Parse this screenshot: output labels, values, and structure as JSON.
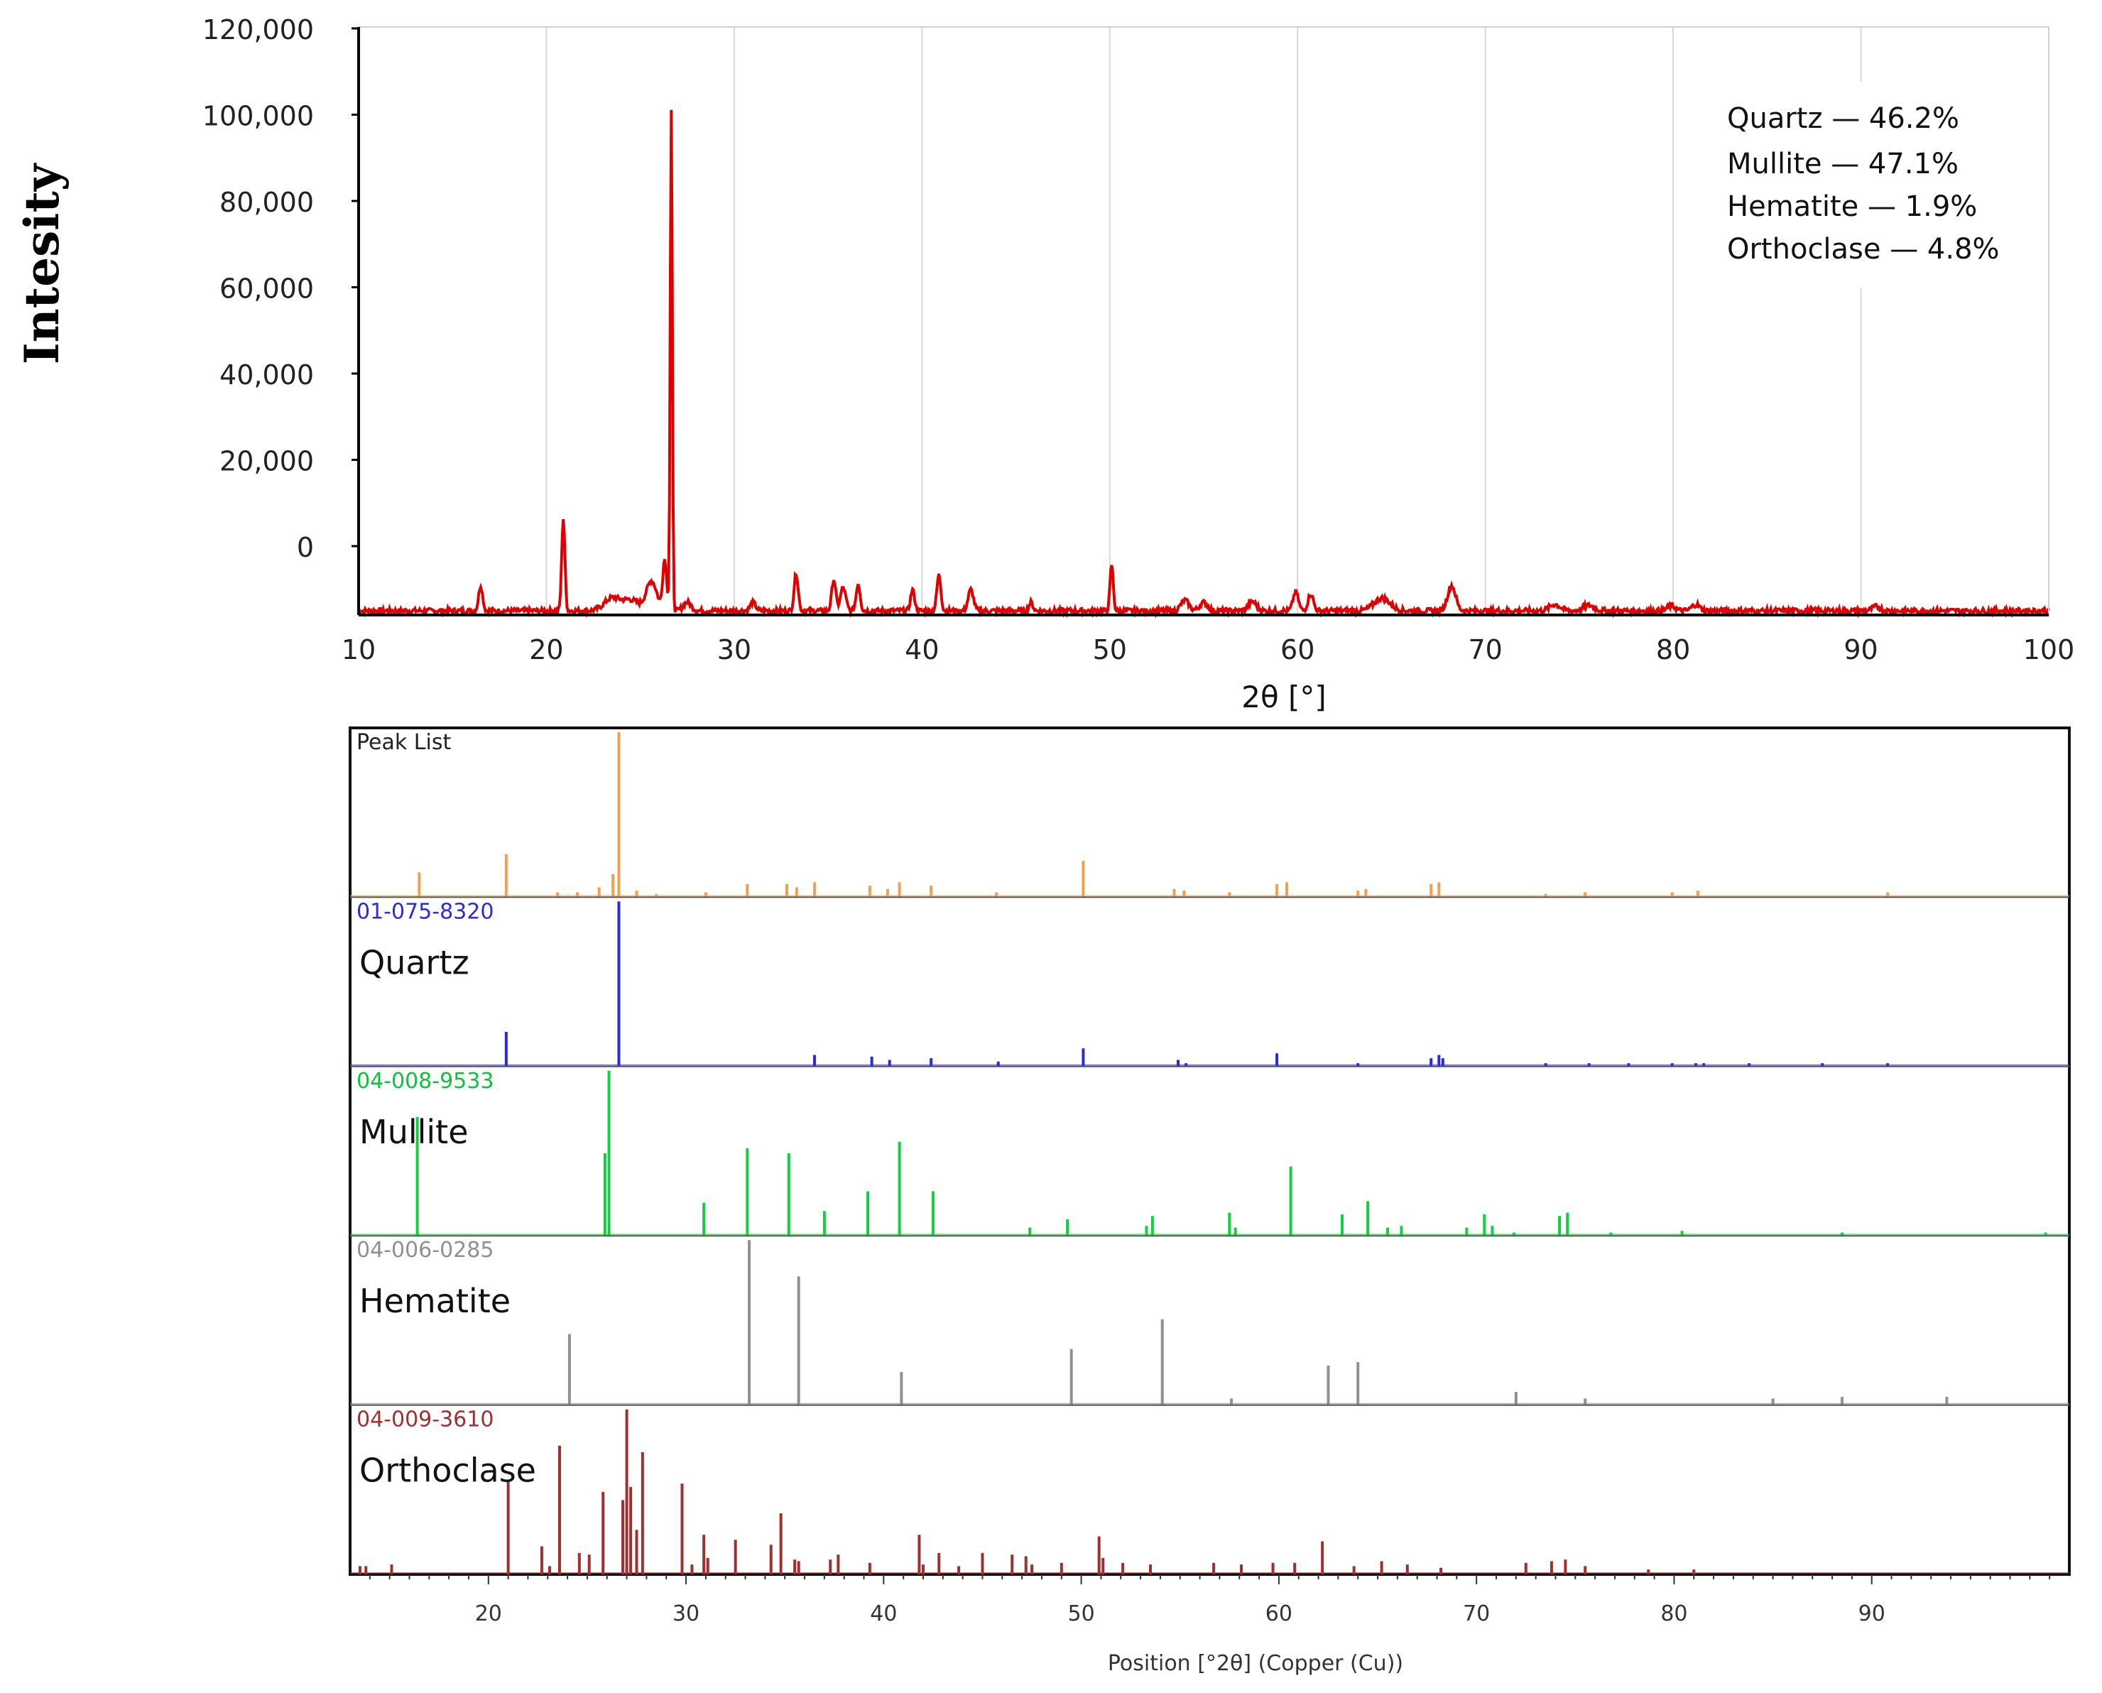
{
  "chart_data": [
    {
      "type": "line",
      "ylabel": "Intesity",
      "xlabel": "2θ [°]",
      "xlim": [
        10,
        100
      ],
      "ylim": [
        -20000,
        120000
      ],
      "grid": true,
      "x_ticks": [
        "10",
        "20",
        "30",
        "40",
        "50",
        "60",
        "70",
        "80",
        "90",
        "100"
      ],
      "y_ticks": [
        "120,000",
        "100,000",
        "80,000",
        "60,000",
        "40,000",
        "20,000",
        "0"
      ],
      "legend": [
        "Quartz — 46.2%",
        "Mullite — 47.1%",
        "Hematite — 1.9%",
        "Orthoclase — 4.8%"
      ],
      "legend_position": "top-right",
      "series": [
        {
          "color": "#e00000",
          "baseline": -19000,
          "peaks": [
            [
              16.5,
              -13000,
              0.15
            ],
            [
              20.9,
              3000,
              0.12
            ],
            [
              23.5,
              -16000,
              0.6
            ],
            [
              24.5,
              -16500,
              0.6
            ],
            [
              25.6,
              -12000,
              0.4
            ],
            [
              26.3,
              -7000,
              0.15
            ],
            [
              26.65,
              100000,
              0.08
            ],
            [
              27.5,
              -17000,
              0.3
            ],
            [
              31.0,
              -17000,
              0.2
            ],
            [
              33.3,
              -10000,
              0.15
            ],
            [
              35.3,
              -11500,
              0.15
            ],
            [
              35.8,
              -13500,
              0.2
            ],
            [
              36.6,
              -12500,
              0.15
            ],
            [
              39.5,
              -14000,
              0.15
            ],
            [
              40.9,
              -10500,
              0.15
            ],
            [
              42.6,
              -14000,
              0.2
            ],
            [
              45.8,
              -17000,
              0.15
            ],
            [
              50.1,
              -8000,
              0.12
            ],
            [
              54.0,
              -16500,
              0.3
            ],
            [
              55.0,
              -17000,
              0.3
            ],
            [
              57.6,
              -16800,
              0.3
            ],
            [
              59.9,
              -14500,
              0.2
            ],
            [
              60.7,
              -15000,
              0.2
            ],
            [
              64.5,
              -16000,
              0.6
            ],
            [
              68.2,
              -13000,
              0.3
            ],
            [
              73.7,
              -17500,
              0.4
            ],
            [
              75.5,
              -17700,
              0.4
            ],
            [
              79.9,
              -17800,
              0.3
            ],
            [
              81.2,
              -17500,
              0.3
            ],
            [
              90.8,
              -18000,
              0.3
            ]
          ]
        }
      ]
    },
    {
      "type": "bar",
      "xlabel": "Position [°2θ] (Copper (Cu))",
      "xlim": [
        13,
        100
      ],
      "x_ticks": [
        "20",
        "30",
        "40",
        "50",
        "60",
        "70",
        "80",
        "90"
      ],
      "panels": [
        {
          "code": "Peak List",
          "name": "",
          "color": "#f0a050",
          "code_color": "#222222",
          "peaks": [
            [
              16.5,
              0.15
            ],
            [
              20.9,
              0.26
            ],
            [
              23.5,
              0.03
            ],
            [
              24.5,
              0.03
            ],
            [
              25.6,
              0.06
            ],
            [
              26.3,
              0.14
            ],
            [
              26.6,
              1.0
            ],
            [
              27.5,
              0.04
            ],
            [
              28.5,
              0.02
            ],
            [
              31.0,
              0.03
            ],
            [
              33.1,
              0.08
            ],
            [
              35.1,
              0.08
            ],
            [
              35.6,
              0.06
            ],
            [
              36.5,
              0.09
            ],
            [
              39.3,
              0.07
            ],
            [
              40.2,
              0.05
            ],
            [
              40.8,
              0.09
            ],
            [
              42.4,
              0.07
            ],
            [
              45.7,
              0.03
            ],
            [
              50.1,
              0.22
            ],
            [
              54.7,
              0.05
            ],
            [
              55.2,
              0.04
            ],
            [
              57.5,
              0.03
            ],
            [
              59.9,
              0.08
            ],
            [
              60.4,
              0.09
            ],
            [
              64.0,
              0.04
            ],
            [
              64.4,
              0.05
            ],
            [
              67.7,
              0.08
            ],
            [
              68.1,
              0.09
            ],
            [
              73.5,
              0.02
            ],
            [
              75.5,
              0.03
            ],
            [
              79.9,
              0.03
            ],
            [
              81.2,
              0.04
            ],
            [
              90.8,
              0.03
            ]
          ]
        },
        {
          "code": "01-075-8320",
          "name": "Quartz",
          "color": "#2a2ae0",
          "code_color": "#2a2ae0",
          "peaks": [
            [
              20.9,
              0.21
            ],
            [
              26.6,
              1.0
            ],
            [
              36.5,
              0.07
            ],
            [
              39.4,
              0.06
            ],
            [
              40.3,
              0.04
            ],
            [
              42.4,
              0.05
            ],
            [
              45.8,
              0.03
            ],
            [
              50.1,
              0.11
            ],
            [
              54.9,
              0.04
            ],
            [
              55.3,
              0.02
            ],
            [
              59.9,
              0.08
            ],
            [
              64.0,
              0.02
            ],
            [
              67.7,
              0.05
            ],
            [
              68.1,
              0.07
            ],
            [
              68.3,
              0.05
            ],
            [
              73.5,
              0.02
            ],
            [
              75.7,
              0.02
            ],
            [
              77.7,
              0.02
            ],
            [
              79.9,
              0.02
            ],
            [
              81.1,
              0.02
            ],
            [
              81.5,
              0.02
            ],
            [
              83.8,
              0.02
            ],
            [
              87.5,
              0.02
            ],
            [
              90.8,
              0.02
            ]
          ]
        },
        {
          "code": "04-008-9533",
          "name": "Mullite",
          "color": "#10d040",
          "code_color": "#10c040",
          "peaks": [
            [
              16.4,
              0.72
            ],
            [
              25.9,
              0.5
            ],
            [
              26.1,
              1.0
            ],
            [
              30.9,
              0.2
            ],
            [
              33.1,
              0.53
            ],
            [
              35.2,
              0.5
            ],
            [
              37.0,
              0.15
            ],
            [
              39.2,
              0.27
            ],
            [
              40.8,
              0.57
            ],
            [
              42.5,
              0.27
            ],
            [
              47.4,
              0.05
            ],
            [
              49.3,
              0.1
            ],
            [
              53.3,
              0.06
            ],
            [
              53.6,
              0.12
            ],
            [
              57.5,
              0.14
            ],
            [
              57.8,
              0.05
            ],
            [
              60.6,
              0.42
            ],
            [
              63.2,
              0.13
            ],
            [
              64.5,
              0.21
            ],
            [
              65.5,
              0.05
            ],
            [
              66.2,
              0.06
            ],
            [
              69.5,
              0.05
            ],
            [
              70.4,
              0.13
            ],
            [
              70.8,
              0.06
            ],
            [
              71.9,
              0.02
            ],
            [
              74.2,
              0.12
            ],
            [
              74.6,
              0.14
            ],
            [
              76.8,
              0.02
            ],
            [
              80.4,
              0.03
            ],
            [
              88.5,
              0.02
            ],
            [
              98.8,
              0.02
            ]
          ]
        },
        {
          "code": "04-006-0285",
          "name": "Hematite",
          "color": "#909090",
          "code_color": "#909090",
          "peaks": [
            [
              24.1,
              0.43
            ],
            [
              33.2,
              1.0
            ],
            [
              35.7,
              0.78
            ],
            [
              40.9,
              0.2
            ],
            [
              49.5,
              0.34
            ],
            [
              54.1,
              0.52
            ],
            [
              57.6,
              0.04
            ],
            [
              62.5,
              0.24
            ],
            [
              64.0,
              0.26
            ],
            [
              72.0,
              0.08
            ],
            [
              75.5,
              0.04
            ],
            [
              85.0,
              0.04
            ],
            [
              88.5,
              0.05
            ],
            [
              93.8,
              0.05
            ]
          ]
        },
        {
          "code": "04-009-3610",
          "name": "Orthoclase",
          "color": "#a03030",
          "code_color": "#a03030",
          "peaks": [
            [
              13.5,
              0.05
            ],
            [
              13.8,
              0.05
            ],
            [
              15.1,
              0.06
            ],
            [
              21.0,
              0.57
            ],
            [
              22.7,
              0.17
            ],
            [
              23.1,
              0.05
            ],
            [
              23.6,
              0.78
            ],
            [
              24.6,
              0.13
            ],
            [
              25.1,
              0.12
            ],
            [
              25.8,
              0.5
            ],
            [
              26.8,
              0.45
            ],
            [
              27.0,
              1.0
            ],
            [
              27.2,
              0.53
            ],
            [
              27.5,
              0.27
            ],
            [
              27.8,
              0.74
            ],
            [
              29.8,
              0.55
            ],
            [
              30.3,
              0.06
            ],
            [
              30.9,
              0.24
            ],
            [
              31.1,
              0.1
            ],
            [
              32.5,
              0.21
            ],
            [
              34.3,
              0.18
            ],
            [
              34.8,
              0.37
            ],
            [
              35.5,
              0.09
            ],
            [
              35.7,
              0.08
            ],
            [
              37.3,
              0.09
            ],
            [
              37.7,
              0.12
            ],
            [
              39.3,
              0.07
            ],
            [
              41.8,
              0.24
            ],
            [
              42.0,
              0.06
            ],
            [
              42.8,
              0.13
            ],
            [
              43.8,
              0.05
            ],
            [
              45.0,
              0.13
            ],
            [
              46.5,
              0.12
            ],
            [
              47.2,
              0.11
            ],
            [
              47.5,
              0.06
            ],
            [
              49.0,
              0.07
            ],
            [
              50.9,
              0.23
            ],
            [
              51.1,
              0.1
            ],
            [
              52.1,
              0.07
            ],
            [
              53.5,
              0.06
            ],
            [
              56.7,
              0.07
            ],
            [
              58.1,
              0.06
            ],
            [
              59.7,
              0.07
            ],
            [
              60.8,
              0.07
            ],
            [
              62.2,
              0.2
            ],
            [
              63.8,
              0.05
            ],
            [
              65.2,
              0.08
            ],
            [
              66.5,
              0.06
            ],
            [
              68.2,
              0.04
            ],
            [
              72.5,
              0.07
            ],
            [
              73.8,
              0.08
            ],
            [
              74.5,
              0.09
            ],
            [
              75.5,
              0.05
            ],
            [
              78.7,
              0.03
            ],
            [
              81.0,
              0.03
            ]
          ]
        }
      ]
    }
  ]
}
